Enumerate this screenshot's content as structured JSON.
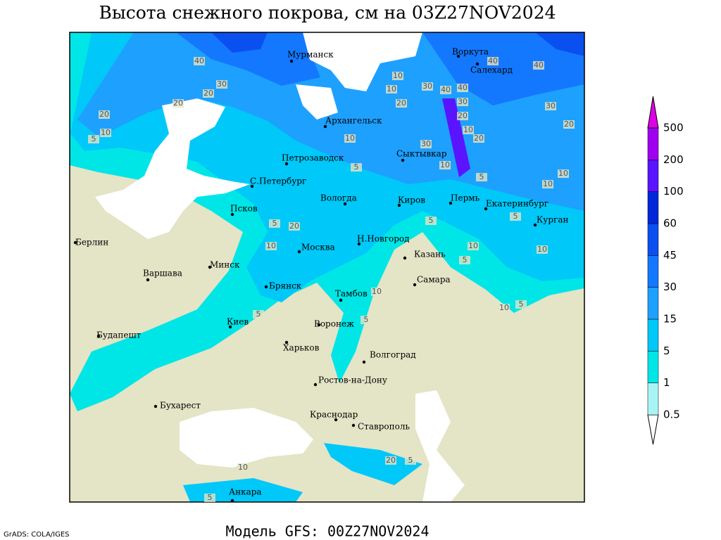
{
  "title": "Высота снежного покрова, см на 03Z27NOV2024",
  "footer": "Модель GFS: 00Z27NOV2024",
  "credit": "GrADS: COLA/IGES",
  "cities": [
    "Мурманск",
    "Воркута",
    "Салехард",
    "Архангельск",
    "Сыктывкар",
    "Петрозаводск",
    "С.Петербург",
    "Вологда",
    "Киров",
    "Пермь",
    "Екатеринбург",
    "Курган",
    "Псков",
    "Берлин",
    "Н.Новгород",
    "Казань",
    "Москва",
    "Минск",
    "Варшава",
    "Самара",
    "Брянск",
    "Тамбов",
    "Воронеж",
    "Киев",
    "Будапешт",
    "Харьков",
    "Волгоград",
    "Ростов-на-Дону",
    "Бухарест",
    "Краснодар",
    "Ставрополь",
    "Анкара"
  ],
  "contour_labels": [
    30,
    20,
    20,
    20,
    10,
    5,
    40,
    10,
    30,
    40,
    40,
    20,
    30,
    20,
    40,
    40,
    30,
    20,
    10,
    30,
    10,
    20,
    10,
    5,
    5,
    10,
    10,
    20,
    5,
    10,
    5,
    10,
    5,
    10,
    5,
    10,
    5,
    5,
    10,
    5,
    10,
    20,
    5,
    5,
    10
  ],
  "legend": {
    "levels": [
      0.5,
      1,
      5,
      15,
      30,
      45,
      60,
      100,
      200,
      500
    ],
    "colors": [
      "#a8f4f4",
      "#00e6e6",
      "#00c8f8",
      "#1ea0ff",
      "#1478ff",
      "#0a50f0",
      "#0028d8",
      "#5a14ff",
      "#a000f0",
      "#e000e8"
    ]
  }
}
